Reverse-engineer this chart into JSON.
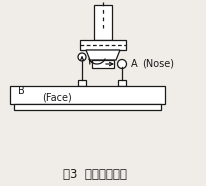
{
  "title": "圖3  主軸振幅檢驗",
  "label_A": "A",
  "label_Nose": "(Nose)",
  "label_B": "B",
  "label_Face": "(Face)",
  "bg_color": "#f0ede8",
  "line_color": "#1a1a1a",
  "title_fontsize": 8.5,
  "label_fontsize": 7
}
